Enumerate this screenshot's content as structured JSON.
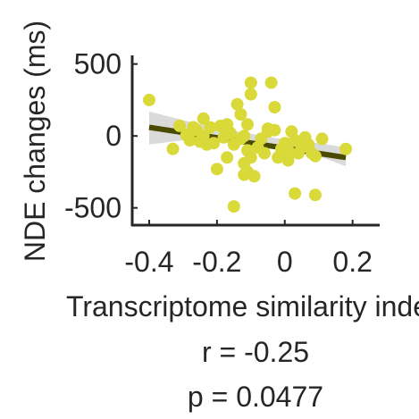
{
  "chart_data": {
    "type": "scatter",
    "title": "",
    "xlabel": "Transcriptome similarity index",
    "ylabel": "NDE changes (ms)",
    "xlim": [
      -0.45,
      0.28
    ],
    "ylim": [
      -620,
      560
    ],
    "xticks": [
      -0.4,
      -0.2,
      0,
      0.2
    ],
    "xtick_labels": [
      "-0.4",
      "-0.2",
      "0",
      "0.2"
    ],
    "yticks": [
      -500,
      0,
      500
    ],
    "ytick_labels": [
      "-500",
      "0",
      "500"
    ],
    "grid": false,
    "legend": "none",
    "colors": {
      "points": "#d9d93a",
      "fit_line": "#4a4a00",
      "ci_band": "#d3d3d3",
      "axis": "#262626"
    },
    "points": [
      {
        "x": -0.4,
        "y": 250
      },
      {
        "x": -0.33,
        "y": -90
      },
      {
        "x": -0.31,
        "y": 70
      },
      {
        "x": -0.29,
        "y": 5
      },
      {
        "x": -0.28,
        "y": -30
      },
      {
        "x": -0.27,
        "y": 60
      },
      {
        "x": -0.26,
        "y": 40
      },
      {
        "x": -0.25,
        "y": -40
      },
      {
        "x": -0.24,
        "y": 120
      },
      {
        "x": -0.24,
        "y": 0
      },
      {
        "x": -0.23,
        "y": -60
      },
      {
        "x": -0.22,
        "y": 60
      },
      {
        "x": -0.21,
        "y": -50
      },
      {
        "x": -0.2,
        "y": -230
      },
      {
        "x": -0.19,
        "y": 70
      },
      {
        "x": -0.18,
        "y": -10
      },
      {
        "x": -0.17,
        "y": 80
      },
      {
        "x": -0.17,
        "y": -150
      },
      {
        "x": -0.16,
        "y": 20
      },
      {
        "x": -0.15,
        "y": -490
      },
      {
        "x": -0.15,
        "y": -60
      },
      {
        "x": -0.14,
        "y": 220
      },
      {
        "x": -0.13,
        "y": 150
      },
      {
        "x": -0.13,
        "y": -20
      },
      {
        "x": -0.12,
        "y": 0
      },
      {
        "x": -0.12,
        "y": -190
      },
      {
        "x": -0.12,
        "y": -270
      },
      {
        "x": -0.11,
        "y": 80
      },
      {
        "x": -0.11,
        "y": -100
      },
      {
        "x": -0.11,
        "y": -250
      },
      {
        "x": -0.1,
        "y": 370
      },
      {
        "x": -0.1,
        "y": 290
      },
      {
        "x": -0.1,
        "y": -150
      },
      {
        "x": -0.09,
        "y": -280
      },
      {
        "x": -0.08,
        "y": -80
      },
      {
        "x": -0.07,
        "y": -20
      },
      {
        "x": -0.06,
        "y": -120
      },
      {
        "x": -0.05,
        "y": 50
      },
      {
        "x": -0.05,
        "y": 30
      },
      {
        "x": -0.04,
        "y": 370
      },
      {
        "x": -0.03,
        "y": 200
      },
      {
        "x": -0.03,
        "y": 40
      },
      {
        "x": -0.02,
        "y": -150
      },
      {
        "x": -0.01,
        "y": -90
      },
      {
        "x": 0.0,
        "y": -50
      },
      {
        "x": 0.01,
        "y": -100
      },
      {
        "x": 0.01,
        "y": -170
      },
      {
        "x": 0.02,
        "y": 30
      },
      {
        "x": 0.03,
        "y": -30
      },
      {
        "x": 0.03,
        "y": -400
      },
      {
        "x": 0.04,
        "y": -120
      },
      {
        "x": 0.05,
        "y": -80
      },
      {
        "x": 0.06,
        "y": -10
      },
      {
        "x": 0.07,
        "y": -60
      },
      {
        "x": 0.08,
        "y": -120
      },
      {
        "x": 0.09,
        "y": -140
      },
      {
        "x": 0.09,
        "y": -410
      },
      {
        "x": 0.11,
        "y": -20
      },
      {
        "x": 0.18,
        "y": -90
      }
    ],
    "fit": {
      "x": [
        -0.4,
        0.18
      ],
      "y": [
        60,
        -150
      ]
    },
    "ci_band": {
      "x": [
        -0.4,
        -0.3,
        -0.2,
        -0.1,
        0.0,
        0.1,
        0.18
      ],
      "lower": [
        -60,
        -30,
        -20,
        -40,
        -90,
        -140,
        -210
      ],
      "upper": [
        170,
        110,
        55,
        15,
        -25,
        -50,
        -80
      ]
    }
  },
  "annotations": {
    "r_text": "r = -0.25",
    "p_text": "p  = 0.0477"
  }
}
